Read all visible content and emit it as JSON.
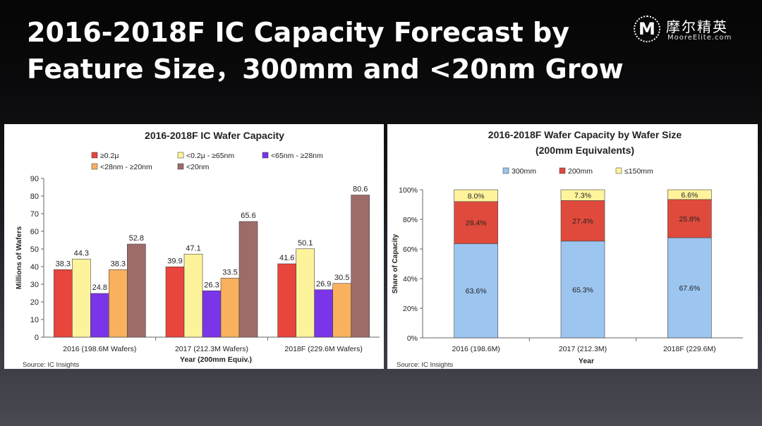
{
  "slide": {
    "title": "2016-2018F IC Capacity Forecast by Feature Size，300mm and <20nm Grow",
    "logo_mark": "M",
    "logo_name": "摩尔精英",
    "logo_url_text": "MooreElite.com"
  },
  "chart_data": [
    {
      "type": "bar",
      "title": "2016-2018F IC Wafer Capacity",
      "xlabel": "Year (200mm Equiv.)",
      "ylabel": "Millions of Wafers",
      "ylim": [
        0,
        90
      ],
      "yticks": [
        0,
        10,
        20,
        30,
        40,
        50,
        60,
        70,
        80,
        90
      ],
      "grid": false,
      "legend_position": "top",
      "categories": [
        "2016 (198.6M Wafers)",
        "2017 (212.3M Wafers)",
        "2018F (229.6M Wafers)"
      ],
      "series": [
        {
          "name": "≥0.2μ",
          "color": "#e8453c",
          "values": [
            38.3,
            39.9,
            41.6
          ]
        },
        {
          "name": "<0.2μ - ≥65nm",
          "color": "#fdf39a",
          "values": [
            44.3,
            47.1,
            50.1
          ]
        },
        {
          "name": "<65nm - ≥28nm",
          "color": "#7b35e8",
          "values": [
            24.8,
            26.3,
            26.9
          ]
        },
        {
          "name": "<28nm - ≥20nm",
          "color": "#f9b15e",
          "values": [
            38.3,
            33.5,
            30.5
          ]
        },
        {
          "name": "<20nm",
          "color": "#9e6b6b",
          "values": [
            52.8,
            65.6,
            80.6
          ]
        }
      ],
      "source": "Source: IC Insights"
    },
    {
      "type": "bar",
      "stacked": true,
      "title": "2016-2018F Wafer Capacity by Wafer Size",
      "subtitle": "(200mm Equivalents)",
      "xlabel": "Year",
      "ylabel": "Share of Capacity",
      "ylim": [
        0,
        100
      ],
      "yticks": [
        "0%",
        "20%",
        "40%",
        "60%",
        "80%",
        "100%"
      ],
      "grid": false,
      "legend_position": "top",
      "categories": [
        "2016 (198.6M)",
        "2017 (212.3M)",
        "2018F (229.6M)"
      ],
      "series": [
        {
          "name": "300mm",
          "color": "#9cc5f0",
          "values": [
            63.6,
            65.3,
            67.6
          ],
          "labels": [
            "63.6%",
            "65.3%",
            "67.6%"
          ]
        },
        {
          "name": "200mm",
          "color": "#e04a3c",
          "values": [
            28.4,
            27.4,
            25.8
          ],
          "labels": [
            "28.4%",
            "27.4%",
            "25.8%"
          ]
        },
        {
          "name": "≤150mm",
          "color": "#fff39c",
          "values": [
            8.0,
            7.3,
            6.6
          ],
          "labels": [
            "8.0%",
            "7.3%",
            "6.6%"
          ]
        }
      ],
      "source": "Source: IC Insights"
    }
  ]
}
